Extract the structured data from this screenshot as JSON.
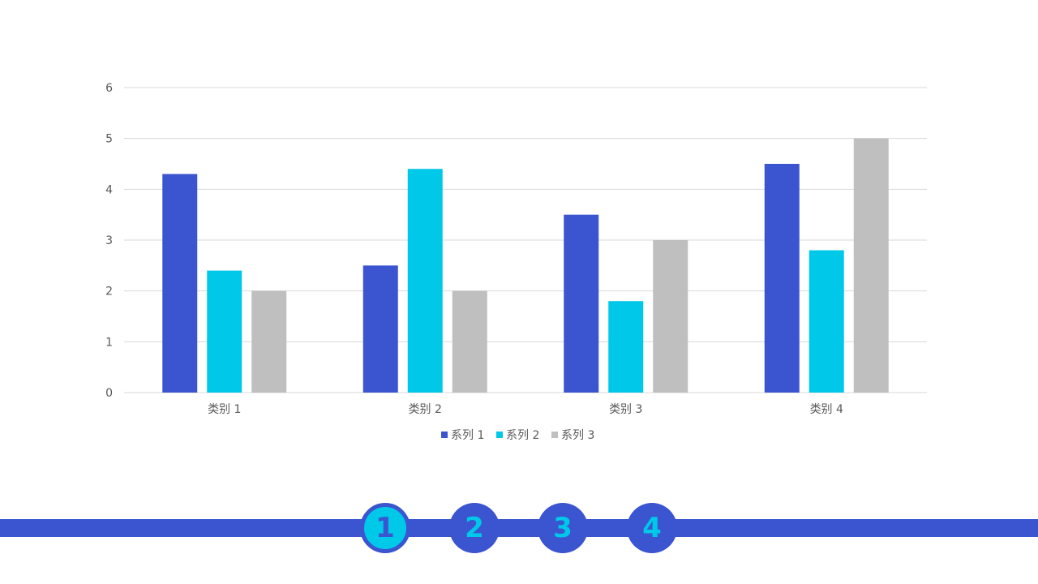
{
  "chart_data": {
    "type": "bar",
    "categories": [
      "类别 1",
      "类别 2",
      "类别 3",
      "类别 4"
    ],
    "series": [
      {
        "name": "系列 1",
        "color": "#3b54d0",
        "values": [
          4.3,
          2.5,
          3.5,
          4.5
        ]
      },
      {
        "name": "系列 2",
        "color": "#00c8e8",
        "values": [
          2.4,
          4.4,
          1.8,
          2.8
        ]
      },
      {
        "name": "系列 3",
        "color": "#bfbfbf",
        "values": [
          2,
          2,
          3,
          5
        ]
      }
    ],
    "yticks": [
      "0",
      "1",
      "2",
      "3",
      "4",
      "5",
      "6"
    ],
    "ylim": [
      0,
      6
    ],
    "grid": true,
    "legend": "bottom"
  },
  "nav": {
    "steps": [
      "1",
      "2",
      "3",
      "4"
    ],
    "active_index": 0,
    "color": "#3b54d0",
    "accent": "#00c8e8"
  }
}
